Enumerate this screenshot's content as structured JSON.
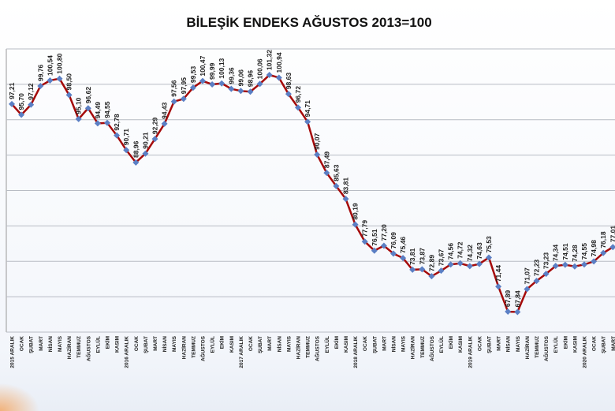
{
  "chart_data": {
    "type": "line",
    "title": "BİLEŞİK ENDEKS AĞUSTOS 2013=100",
    "categories": [
      "2015 ARALIK",
      "OCAK",
      "ŞUBAT",
      "MART",
      "NİSAN",
      "MAYIS",
      "HAZİRAN",
      "TEMMUZ",
      "AĞUSTOS",
      "EYLÜL",
      "EKİM",
      "KASIM",
      "2016 ARALIK",
      "OCAK",
      "ŞUBAT",
      "MART",
      "NİSAN",
      "MAYIS",
      "HAZİRAN",
      "TEMMUZ",
      "AĞUSTOS",
      "EYLÜL",
      "EKİM",
      "KASIM",
      "2017 ARALIK",
      "OCAK",
      "ŞUBAT",
      "MART",
      "NİSAN",
      "MAYIS",
      "HAZİRAN",
      "TEMMUZ",
      "AĞUSTOS",
      "EYLÜL",
      "EKİM",
      "KASIM",
      "2018 ARALIK",
      "OCAK",
      "ŞUBAT",
      "MART",
      "NİSAN",
      "MAYIS",
      "HAZİRAN",
      "TEMMUZ",
      "AĞUSTOS",
      "EYLÜL",
      "EKİM",
      "KASIM",
      "2019 ARALIK",
      "OCAK",
      "ŞUBAT",
      "MART",
      "NİSAN",
      "MAYIS",
      "HAZİRAN",
      "TEMMUZ",
      "AĞUSTOS",
      "EYLÜL",
      "EKİM",
      "KASIM",
      "2020 ARALIK",
      "OCAK",
      "ŞUBAT",
      "MART"
    ],
    "values": [
      97.21,
      95.7,
      97.12,
      99.76,
      100.54,
      100.8,
      98.5,
      95.1,
      96.62,
      94.49,
      94.55,
      92.78,
      90.71,
      88.96,
      90.21,
      92.29,
      94.43,
      97.56,
      97.95,
      99.53,
      100.47,
      99.99,
      100.13,
      99.36,
      99.06,
      98.96,
      100.06,
      101.32,
      100.94,
      98.63,
      96.72,
      94.71,
      90.07,
      87.49,
      85.63,
      83.81,
      80.19,
      77.79,
      76.51,
      77.2,
      76.09,
      75.46,
      73.81,
      73.87,
      72.89,
      73.67,
      74.56,
      74.72,
      74.32,
      74.63,
      75.53,
      71.44,
      67.89,
      67.84,
      71.07,
      72.23,
      73.23,
      74.34,
      74.51,
      74.28,
      74.55,
      74.98,
      76.18,
      77.01
    ],
    "value_labels": [
      "97,21",
      "95,70",
      "97,12",
      "99,76",
      "100,54",
      "100,80",
      "98,50",
      "95,10",
      "96,62",
      "94,49",
      "94,55",
      "92,78",
      "90,71",
      "88,96",
      "90,21",
      "92,29",
      "94,43",
      "97,56",
      "97,95",
      "99,53",
      "100,47",
      "99,99",
      "100,13",
      "99,36",
      "99,06",
      "98,96",
      "100,06",
      "101,32",
      "100,94",
      "98,63",
      "96,72",
      "94,71",
      "90,07",
      "87,49",
      "85,63",
      "83,81",
      "80,19",
      "77,79",
      "76,51",
      "77,20",
      "76,09",
      "75,46",
      "73,81",
      "73,87",
      "72,89",
      "73,67",
      "74,56",
      "74,72",
      "74,32",
      "74,63",
      "75,53",
      "71,44",
      "67,89",
      "67,84",
      "71,07",
      "72,23",
      "73,23",
      "74,34",
      "74,51",
      "74,28",
      "74,55",
      "74,98",
      "76,18",
      "77,01"
    ],
    "color": "#a50a0a",
    "marker_color": "#5b7fc4",
    "ylim": [
      65,
      105
    ],
    "yticks": [
      65,
      70,
      75,
      80,
      85,
      90,
      95,
      100,
      105
    ],
    "grid": true
  }
}
